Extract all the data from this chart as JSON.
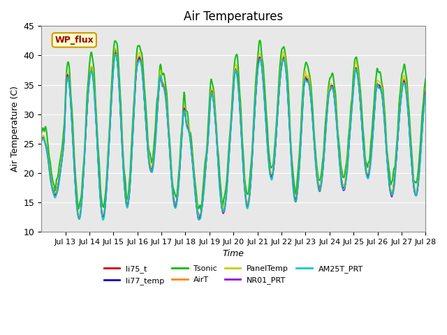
{
  "title": "Air Temperatures",
  "xlabel": "Time",
  "ylabel": "Air Temperature (C)",
  "ylim": [
    10,
    45
  ],
  "background_color": "#e8e8e8",
  "series": {
    "li75_t": {
      "color": "#cc0000",
      "lw": 1.2
    },
    "li77_temp": {
      "color": "#0000cc",
      "lw": 1.2
    },
    "Tsonic": {
      "color": "#00bb00",
      "lw": 1.5
    },
    "AirT": {
      "color": "#ff8800",
      "lw": 1.2
    },
    "PanelTemp": {
      "color": "#cccc00",
      "lw": 1.2
    },
    "NR01_PRT": {
      "color": "#9900cc",
      "lw": 1.2
    },
    "AM25T_PRT": {
      "color": "#00cccc",
      "lw": 1.5
    }
  },
  "xtick_labels": [
    "Jul 13",
    "Jul 14",
    "Jul 15",
    "Jul 16",
    "Jul 17",
    "Jul 18",
    "Jul 19",
    "Jul 20",
    "Jul 21",
    "Jul 22",
    "Jul 23",
    "Jul 24",
    "Jul 25",
    "Jul 26",
    "Jul 27",
    "Jul 28"
  ],
  "ytick_labels": [
    10,
    15,
    20,
    25,
    30,
    35,
    40,
    45
  ],
  "annotation_text": "WP_flux",
  "title_fontsize": 12,
  "day_mins": [
    16,
    12,
    12,
    14,
    20,
    14,
    12,
    13,
    14,
    19,
    15,
    17,
    17,
    19,
    16,
    16
  ],
  "day_maxs": [
    26,
    37,
    38,
    41,
    40,
    35,
    28,
    34,
    38,
    40,
    40,
    36,
    35,
    38,
    35,
    36
  ]
}
